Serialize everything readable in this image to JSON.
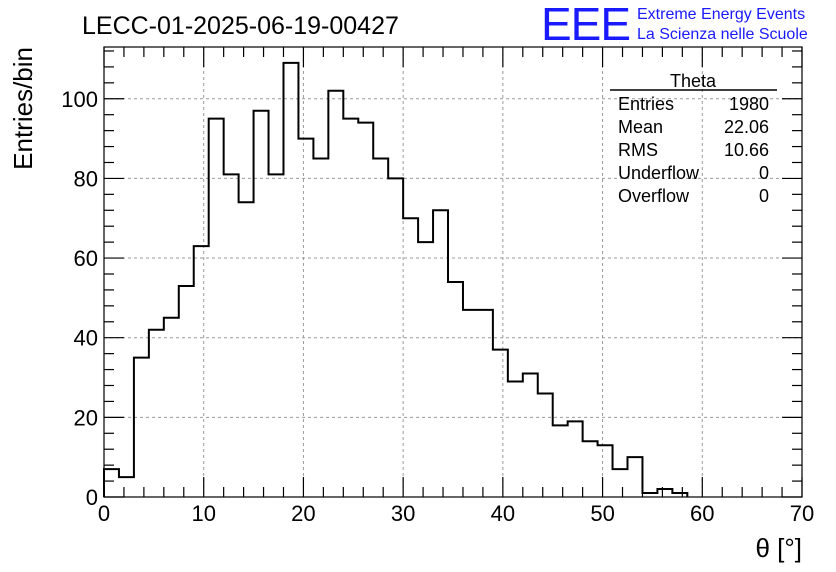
{
  "logo": {
    "mark": "EEE",
    "line1": "Extreme Energy Events",
    "line2": "La Scienza nelle Scuole",
    "color": "#1a1aff"
  },
  "stats": {
    "title": "Theta",
    "rows": [
      {
        "label": "Entries",
        "value": "1980"
      },
      {
        "label": "Mean",
        "value": "22.06"
      },
      {
        "label": "RMS",
        "value": "10.66"
      },
      {
        "label": "Underflow",
        "value": "0"
      },
      {
        "label": "Overflow",
        "value": "0"
      }
    ]
  },
  "chart_data": {
    "type": "bar",
    "title": "LECC-01-2025-06-19-00427",
    "xlabel": "θ [°]",
    "ylabel": "Entries/bin",
    "xlim": [
      0,
      70
    ],
    "ylim": [
      0,
      113
    ],
    "bin_width": 1.5,
    "x_ticks": [
      0,
      10,
      20,
      30,
      40,
      50,
      60,
      70
    ],
    "y_ticks": [
      0,
      20,
      40,
      60,
      80,
      100
    ],
    "grid": true,
    "values": [
      7,
      5,
      35,
      42,
      45,
      53,
      63,
      95,
      81,
      74,
      97,
      81,
      109,
      90,
      85,
      102,
      95,
      94,
      85,
      80,
      70,
      64,
      72,
      54,
      47,
      47,
      37,
      29,
      31,
      26,
      18,
      19,
      14,
      13,
      7,
      10,
      1,
      2,
      1
    ]
  }
}
